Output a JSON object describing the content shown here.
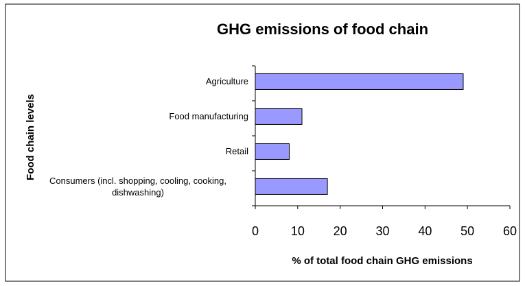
{
  "chart_data": {
    "type": "bar",
    "orientation": "horizontal",
    "title": "GHG emissions of food chain",
    "x_label": "% of total food chain GHG emissions",
    "y_label": "Food chain levels",
    "categories": [
      "Agriculture",
      "Food manufacturing",
      "Retail",
      "Consumers (incl. shopping, cooling, cooking, dishwashing)"
    ],
    "values": [
      49,
      11,
      8,
      17
    ],
    "color": "#9999ff",
    "xlim": [
      0,
      60
    ],
    "xticks": [
      0,
      10,
      20,
      30,
      40,
      50,
      60
    ],
    "grid": false
  }
}
